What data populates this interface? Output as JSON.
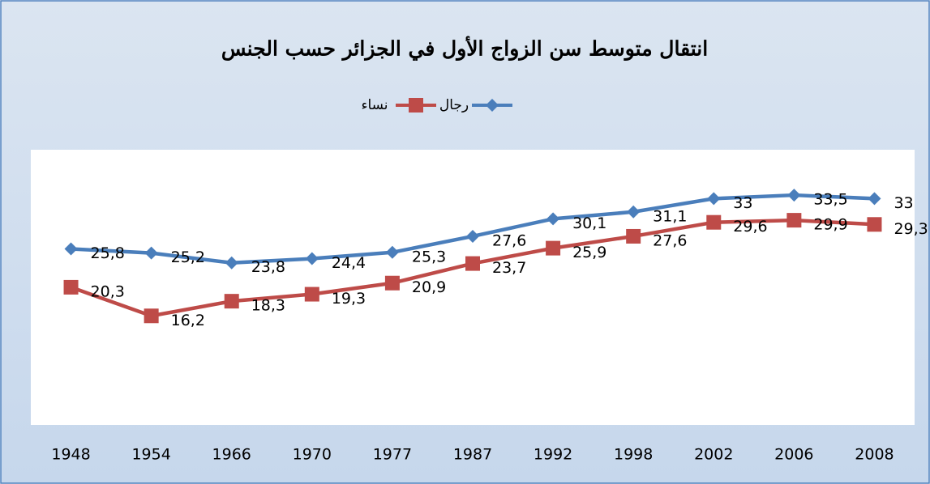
{
  "chart_data": {
    "type": "line",
    "title": "انتقال متوسط سن الزواج الأول في الجزائر حسب الجنس",
    "categories": [
      "1948",
      "1954",
      "1966",
      "1970",
      "1977",
      "1987",
      "1992",
      "1998",
      "2002",
      "2006",
      "2008"
    ],
    "series": [
      {
        "name": "رجال",
        "color": "#4a7ebb",
        "marker": "diamond",
        "values": [
          25.8,
          25.2,
          23.8,
          24.4,
          25.3,
          27.6,
          30.1,
          31.1,
          33,
          33.5,
          33
        ],
        "value_labels": [
          "25,8",
          "25,2",
          "23,8",
          "24,4",
          "25,3",
          "27,6",
          "30,1",
          "31,1",
          "33",
          "33,5",
          "33"
        ]
      },
      {
        "name": "نساء",
        "color": "#be4b48",
        "marker": "square",
        "values": [
          20.3,
          16.2,
          18.3,
          19.3,
          20.9,
          23.7,
          25.9,
          27.6,
          29.6,
          29.9,
          29.3
        ],
        "value_labels": [
          "20,3",
          "16,2",
          "18,3",
          "19,3",
          "20,9",
          "23,7",
          "25,9",
          "27,6",
          "29,6",
          "29,9",
          "29,3"
        ]
      }
    ],
    "ylim": [
      0,
      40
    ]
  }
}
